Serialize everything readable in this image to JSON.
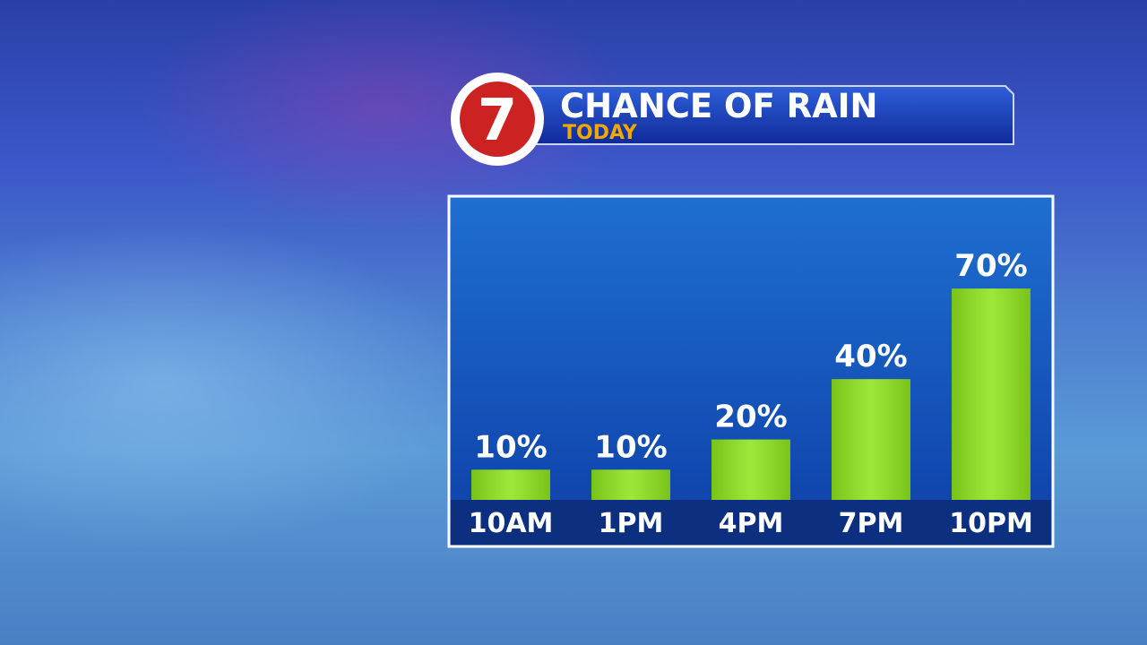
{
  "logo": "7",
  "chart_data": {
    "type": "bar",
    "title": "CHANCE OF RAIN",
    "subtitle": "TODAY",
    "categories": [
      "10AM",
      "1PM",
      "4PM",
      "7PM",
      "10PM"
    ],
    "values": [
      10,
      10,
      20,
      40,
      70
    ],
    "value_labels": [
      "10%",
      "10%",
      "20%",
      "40%",
      "70%"
    ],
    "color": "#8ee41e"
  }
}
